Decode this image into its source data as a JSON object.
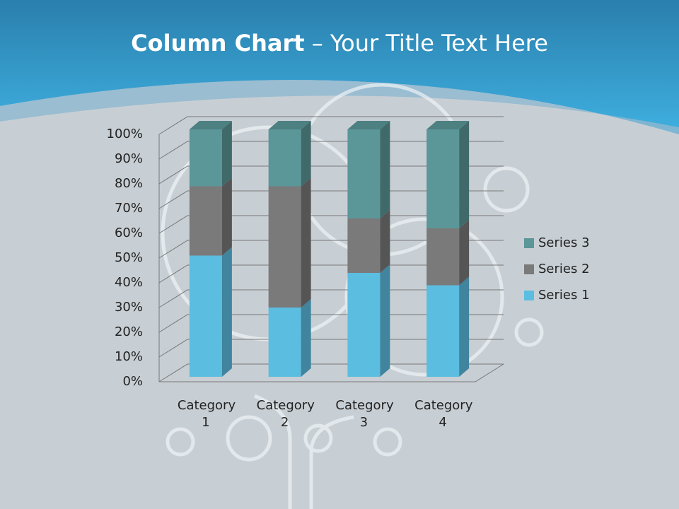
{
  "slide": {
    "title_strong": "Column Chart",
    "title_rest": "– Your Title Text Here"
  },
  "chart_data": {
    "type": "stacked-bar-3d",
    "percent": true,
    "categories": [
      "Category 1",
      "Category 2",
      "Category 3",
      "Category 4"
    ],
    "series": [
      {
        "name": "Series 1",
        "color": "#5bbde0",
        "values": [
          49,
          28,
          42,
          37
        ]
      },
      {
        "name": "Series 2",
        "color": "#7a7a7a",
        "values": [
          28,
          49,
          22,
          23
        ]
      },
      {
        "name": "Series 3",
        "color": "#5b9698",
        "values": [
          23,
          23,
          36,
          40
        ]
      }
    ],
    "ylim": [
      0,
      100
    ],
    "yticks": [
      {
        "value": 0,
        "label": "0%"
      },
      {
        "value": 10,
        "label": "10%"
      },
      {
        "value": 20,
        "label": "20%"
      },
      {
        "value": 30,
        "label": "30%"
      },
      {
        "value": 40,
        "label": "40%"
      },
      {
        "value": 50,
        "label": "50%"
      },
      {
        "value": 60,
        "label": "60%"
      },
      {
        "value": 70,
        "label": "70%"
      },
      {
        "value": 80,
        "label": "80%"
      },
      {
        "value": 90,
        "label": "90%"
      },
      {
        "value": 100,
        "label": "100%"
      }
    ],
    "grid": true,
    "legend": "right"
  }
}
